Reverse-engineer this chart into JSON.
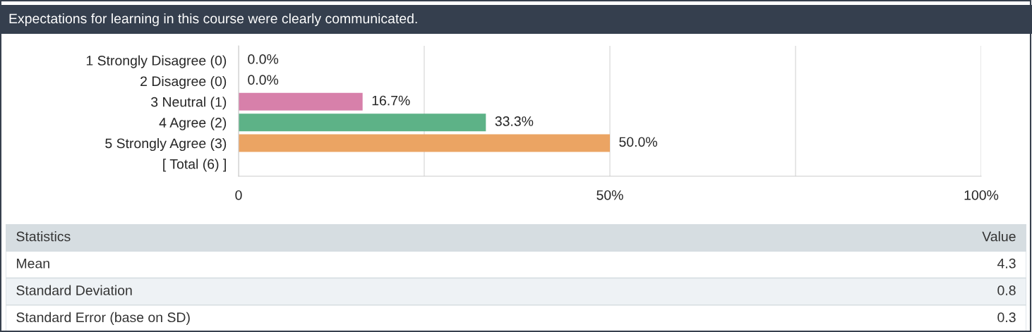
{
  "chart_data": [
    {
      "type": "bar",
      "orientation": "horizontal",
      "title": "Expectations for learning in this course were clearly communicated.",
      "categories": [
        "1 Strongly Disagree (0)",
        "2 Disagree (0)",
        "3 Neutral (1)",
        "4 Agree (2)",
        "5 Strongly Agree (3)",
        "[ Total (6) ]"
      ],
      "values": [
        0,
        0,
        16.7,
        33.3,
        50.0,
        null
      ],
      "colors": [
        null,
        null,
        "#d780aa",
        "#5db287",
        "#eba463",
        null
      ],
      "value_labels": [
        "0.0%",
        "0.0%",
        "16.7%",
        "33.3%",
        "50.0%",
        null
      ],
      "xlim": [
        0,
        100
      ],
      "xticks": [
        0,
        {
          "value": 25,
          "label": null
        },
        {
          "value": 50,
          "label": "50%"
        },
        {
          "value": 75,
          "label": null
        },
        {
          "value": 100,
          "label": "100%"
        }
      ],
      "grid": "x",
      "legend": false
    },
    {
      "type": "other",
      "annotations": [
        "Statistics",
        "Value"
      ],
      "categories": [
        "Mean",
        "Standard Deviation",
        "Standard Error (base on SD)"
      ],
      "values": [
        4.3,
        0.8,
        0.3
      ],
      "data_labels": true
    }
  ]
}
